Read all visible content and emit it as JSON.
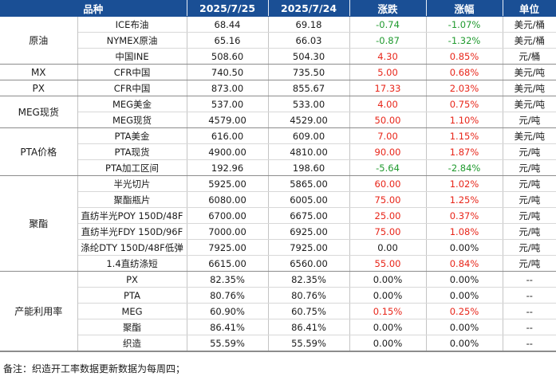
{
  "header": [
    "品种",
    "2025/7/25",
    "2025/7/24",
    "涨跌",
    "涨幅",
    "单位"
  ],
  "groups": [
    {
      "name": "原油",
      "rows": [
        {
          "item": "ICE布油",
          "d1": "68.44",
          "d2": "69.18",
          "chg": "-0.74",
          "pct": "-1.07%",
          "unit": "美元/桶",
          "dir": "down"
        },
        {
          "item": "NYMEX原油",
          "d1": "65.16",
          "d2": "66.03",
          "chg": "-0.87",
          "pct": "-1.32%",
          "unit": "美元/桶",
          "dir": "down"
        },
        {
          "item": "中国INE",
          "d1": "508.60",
          "d2": "504.30",
          "chg": "4.30",
          "pct": "0.85%",
          "unit": "元/桶",
          "dir": "up"
        }
      ]
    },
    {
      "name": "MX",
      "rows": [
        {
          "item": "CFR中国",
          "d1": "740.50",
          "d2": "735.50",
          "chg": "5.00",
          "pct": "0.68%",
          "unit": "美元/吨",
          "dir": "up"
        }
      ]
    },
    {
      "name": "PX",
      "rows": [
        {
          "item": "CFR中国",
          "d1": "873.00",
          "d2": "855.67",
          "chg": "17.33",
          "pct": "2.03%",
          "unit": "美元/吨",
          "dir": "up"
        }
      ]
    },
    {
      "name": "MEG现货",
      "rows": [
        {
          "item": "MEG美金",
          "d1": "537.00",
          "d2": "533.00",
          "chg": "4.00",
          "pct": "0.75%",
          "unit": "美元/吨",
          "dir": "up"
        },
        {
          "item": "MEG现货",
          "d1": "4579.00",
          "d2": "4529.00",
          "chg": "50.00",
          "pct": "1.10%",
          "unit": "元/吨",
          "dir": "up"
        }
      ]
    },
    {
      "name": "PTA价格",
      "rows": [
        {
          "item": "PTA美金",
          "d1": "616.00",
          "d2": "609.00",
          "chg": "7.00",
          "pct": "1.15%",
          "unit": "美元/吨",
          "dir": "up"
        },
        {
          "item": "PTA现货",
          "d1": "4900.00",
          "d2": "4810.00",
          "chg": "90.00",
          "pct": "1.87%",
          "unit": "元/吨",
          "dir": "up"
        },
        {
          "item": "PTA加工区间",
          "d1": "192.96",
          "d2": "198.60",
          "chg": "-5.64",
          "pct": "-2.84%",
          "unit": "元/吨",
          "dir": "down"
        }
      ]
    },
    {
      "name": "聚酯",
      "rows": [
        {
          "item": "半光切片",
          "d1": "5925.00",
          "d2": "5865.00",
          "chg": "60.00",
          "pct": "1.02%",
          "unit": "元/吨",
          "dir": "up"
        },
        {
          "item": "聚酯瓶片",
          "d1": "6080.00",
          "d2": "6005.00",
          "chg": "75.00",
          "pct": "1.25%",
          "unit": "元/吨",
          "dir": "up"
        },
        {
          "item": "直纺半光POY 150D/48F",
          "d1": "6700.00",
          "d2": "6675.00",
          "chg": "25.00",
          "pct": "0.37%",
          "unit": "元/吨",
          "dir": "up"
        },
        {
          "item": "直纺半光FDY 150D/96F",
          "d1": "7000.00",
          "d2": "6925.00",
          "chg": "75.00",
          "pct": "1.08%",
          "unit": "元/吨",
          "dir": "up"
        },
        {
          "item": "涤纶DTY 150D/48F低弹",
          "d1": "7925.00",
          "d2": "7925.00",
          "chg": "0.00",
          "pct": "0.00%",
          "unit": "元/吨",
          "dir": "flat"
        },
        {
          "item": "1.4直纺涤短",
          "d1": "6615.00",
          "d2": "6560.00",
          "chg": "55.00",
          "pct": "0.84%",
          "unit": "元/吨",
          "dir": "up"
        }
      ]
    },
    {
      "name": "产能利用率",
      "rows": [
        {
          "item": "PX",
          "d1": "82.35%",
          "d2": "82.35%",
          "chg": "0.00%",
          "pct": "0.00%",
          "unit": "--",
          "dir": "flat"
        },
        {
          "item": "PTA",
          "d1": "80.76%",
          "d2": "80.76%",
          "chg": "0.00%",
          "pct": "0.00%",
          "unit": "--",
          "dir": "flat"
        },
        {
          "item": "MEG",
          "d1": "60.90%",
          "d2": "60.75%",
          "chg": "0.15%",
          "pct": "0.25%",
          "unit": "--",
          "dir": "up"
        },
        {
          "item": "聚酯",
          "d1": "86.41%",
          "d2": "86.41%",
          "chg": "0.00%",
          "pct": "0.00%",
          "unit": "--",
          "dir": "flat"
        },
        {
          "item": "织造",
          "d1": "55.59%",
          "d2": "55.59%",
          "chg": "0.00%",
          "pct": "0.00%",
          "unit": "--",
          "dir": "flat"
        }
      ]
    }
  ],
  "note": "备注：织造开工率数据更新数据为每周四；"
}
